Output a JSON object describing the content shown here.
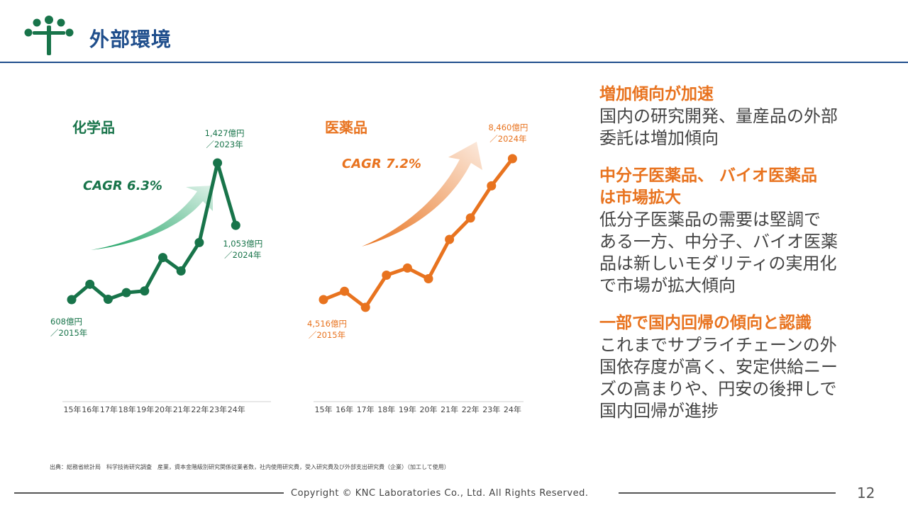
{
  "header": {
    "title": "外部環境"
  },
  "chart_data": [
    {
      "type": "line",
      "title": "化学品",
      "unit": "億円",
      "categories": [
        "15年",
        "16年",
        "17年",
        "18年",
        "19年",
        "20年",
        "21年",
        "22年",
        "23年",
        "24年"
      ],
      "values": [
        608,
        700,
        610,
        650,
        660,
        860,
        780,
        950,
        1427,
        1053
      ],
      "ylim": [
        400,
        1500
      ],
      "color": "#18744a",
      "cagr_label": "CAGR 6.3%",
      "annotations": [
        {
          "index": 0,
          "line1": "608億円",
          "line2": "／2015年"
        },
        {
          "index": 8,
          "line1": "1,427億円",
          "line2": "／2023年"
        },
        {
          "index": 9,
          "line1": "1,053億円",
          "line2": "／2024年"
        }
      ]
    },
    {
      "type": "line",
      "title": "医薬品",
      "unit": "億円",
      "categories": [
        "15年",
        "16年",
        "17年",
        "18年",
        "19年",
        "20年",
        "21年",
        "22年",
        "23年",
        "24年"
      ],
      "values": [
        4516,
        4750,
        4300,
        5200,
        5400,
        5100,
        6200,
        6800,
        7700,
        8460
      ],
      "ylim": [
        1500,
        9000
      ],
      "color": "#e8731f",
      "cagr_label": "CAGR 7.2%",
      "annotations": [
        {
          "index": 0,
          "line1": "4,516億円",
          "line2": "／2015年"
        },
        {
          "index": 9,
          "line1": "8,460億円",
          "line2": "／2024年"
        }
      ]
    }
  ],
  "sections": [
    {
      "heading": "増加傾向が加速",
      "body": [
        "国内の研究開発、量産品の外部",
        "委託は増加傾向"
      ]
    },
    {
      "heading": [
        "中分子医薬品、 バイオ医薬品",
        "は市場拡大"
      ],
      "body": [
        "低分子医薬品の需要は堅調で",
        "ある一方、中分子、バイオ医薬",
        "品は新しいモダリティの実用化",
        "で市場が拡大傾向"
      ]
    },
    {
      "heading": "一部で国内回帰の傾向と認識",
      "body": [
        "これまでサプライチェーンの外",
        "国依存度が高く、安定供給ニー",
        "ズの高まりや、円安の後押しで",
        "国内回帰が進捗"
      ]
    }
  ],
  "source": "出典：総務省統計局　科学技術研究調査　産業，資本金階級別研究関係従業者数，社内使用研究費，受入研究費及び外部支出研究費（企業）（加工して使用）",
  "footer": {
    "copyright": "Copyright © KNC Laboratories Co., Ltd. All Rights Reserved.",
    "page": "12"
  },
  "colors": {
    "brand_blue": "#1f4e8c",
    "green": "#18744a",
    "orange": "#e8731f"
  },
  "icons": {
    "logo": "tree-logo-icon"
  }
}
